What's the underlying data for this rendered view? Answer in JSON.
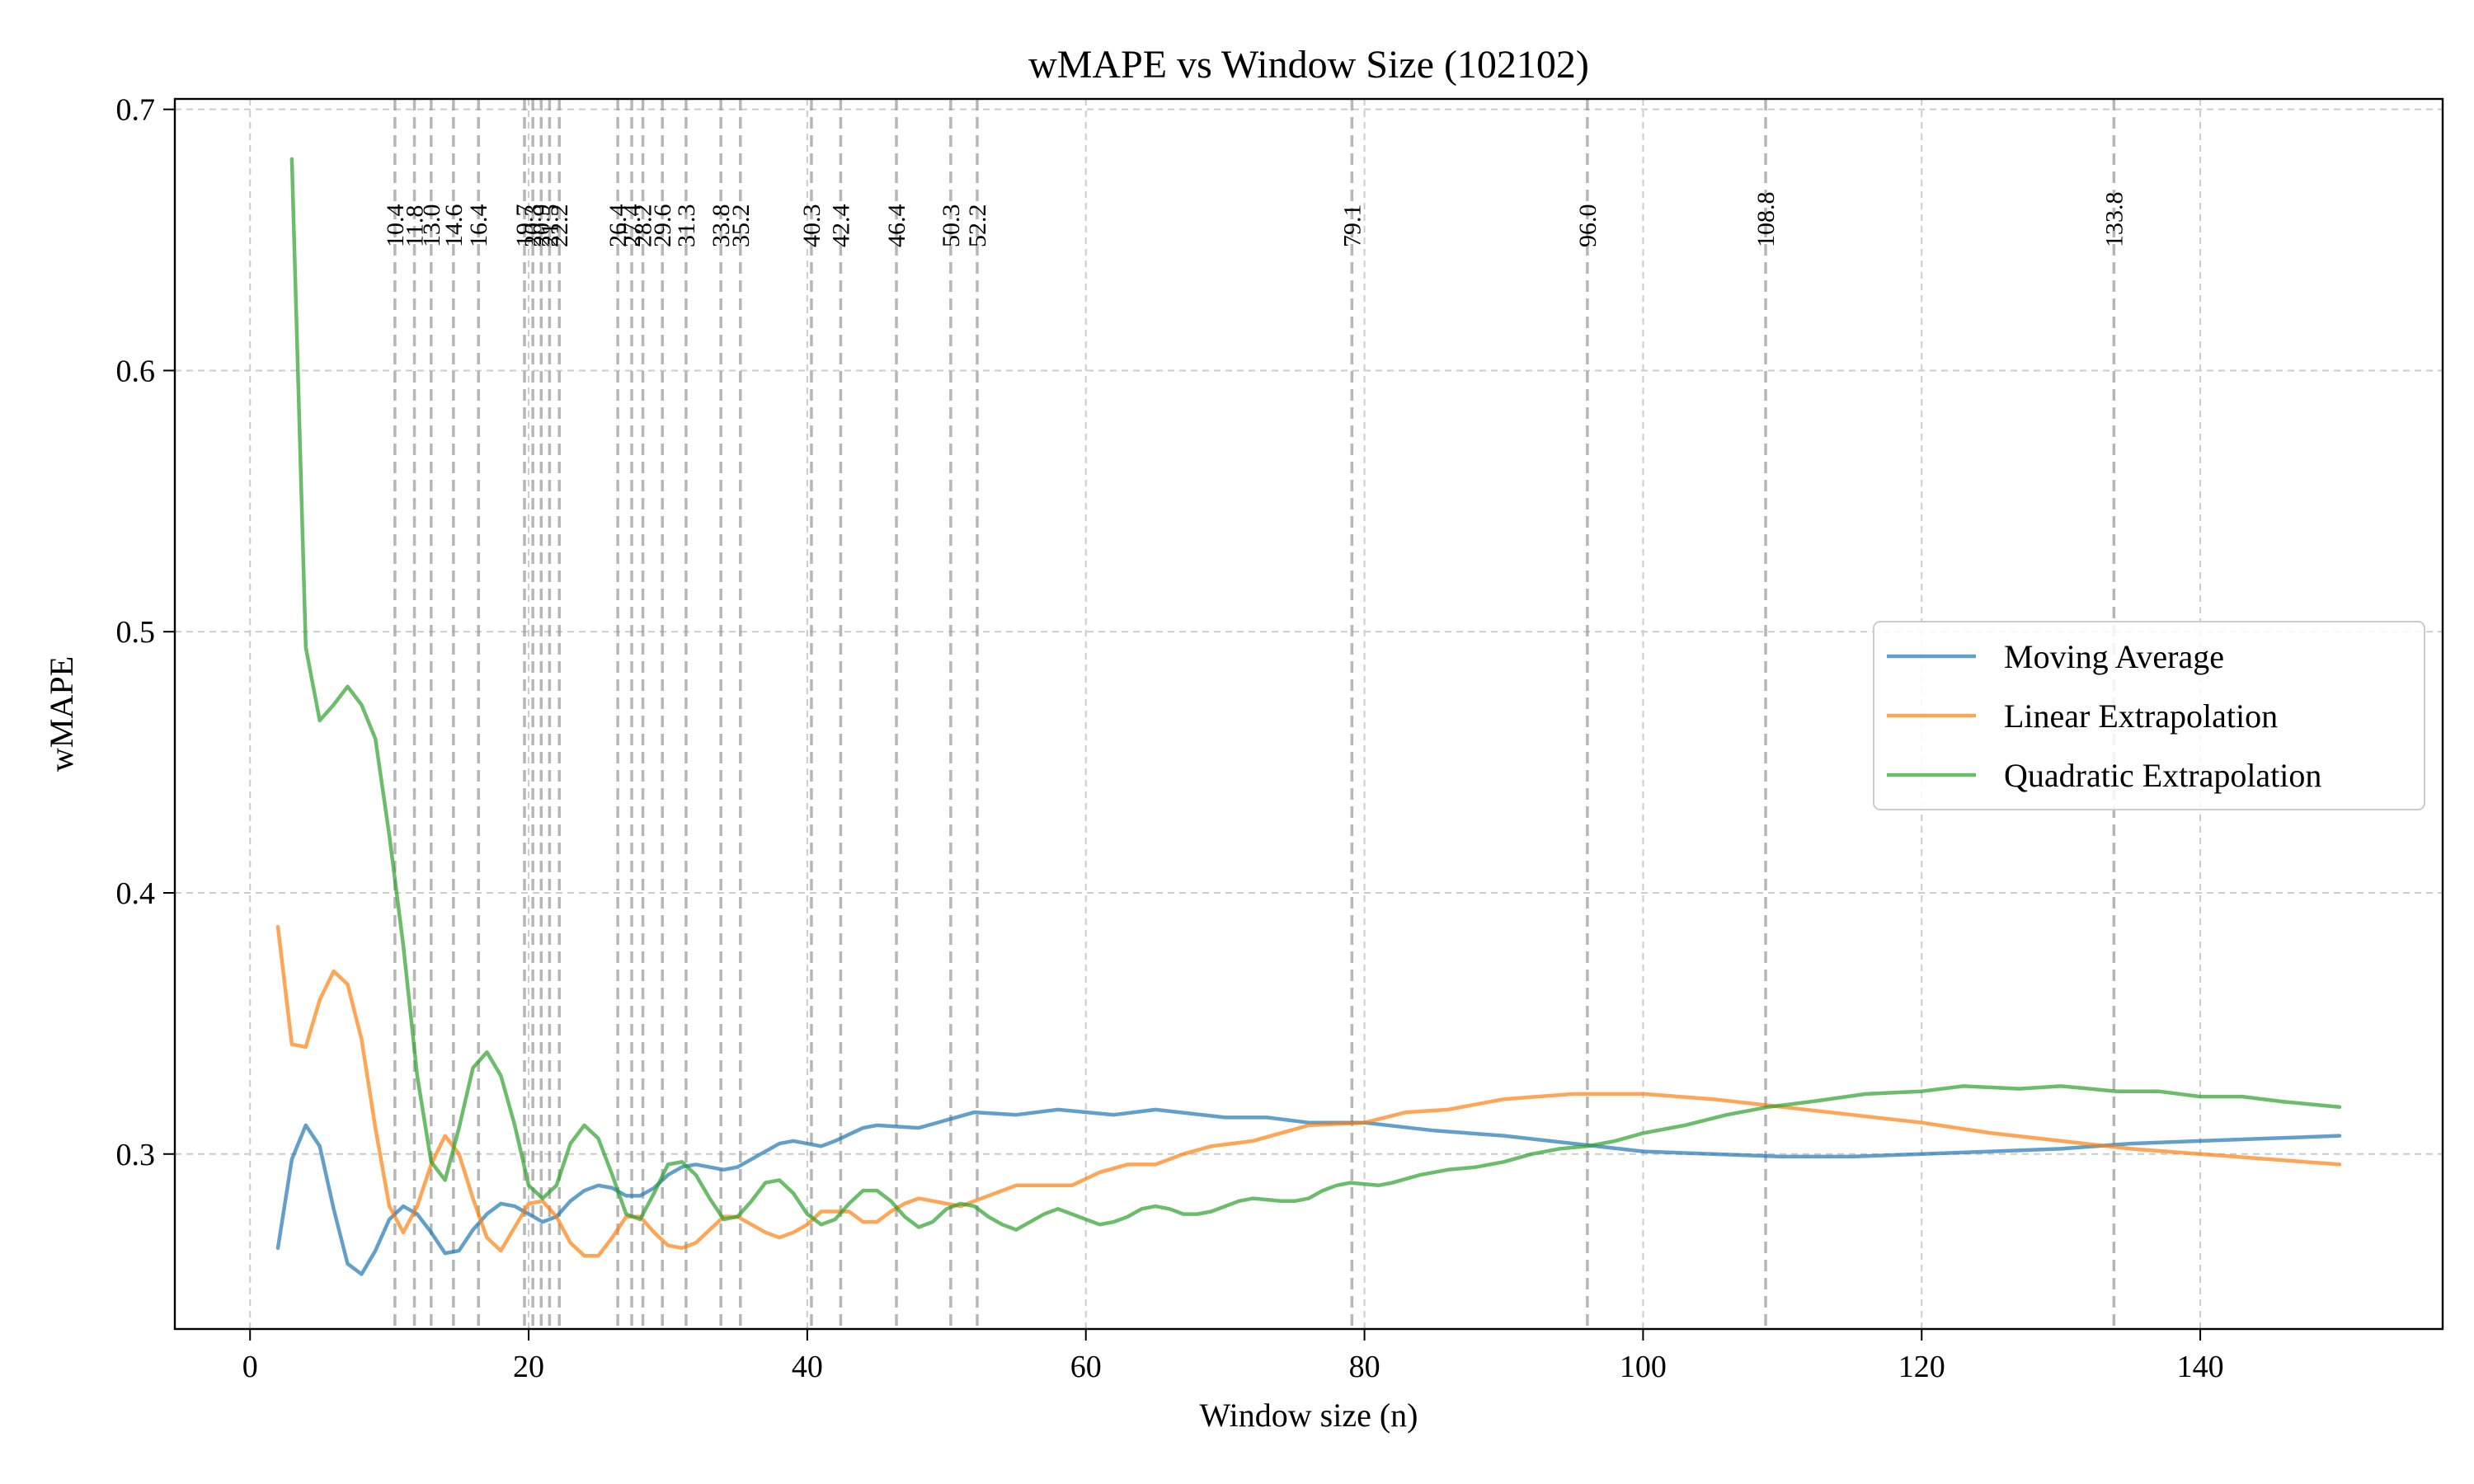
{
  "chart_data": {
    "type": "line",
    "title": "wMAPE vs Window Size (102102)",
    "xlabel": "Window size (n)",
    "ylabel": "wMAPE",
    "xlim": [
      -5.4,
      157.4
    ],
    "ylim": [
      0.233,
      0.704
    ],
    "x_ticks": [
      0,
      20,
      40,
      60,
      80,
      100,
      120,
      140
    ],
    "y_ticks": [
      0.3,
      0.4,
      0.5,
      0.6,
      0.7
    ],
    "grid": true,
    "legend_position": "center-right",
    "markers": [
      "10.4",
      "11.8",
      "13.0",
      "14.6",
      "16.4",
      "19.7",
      "20.3",
      "20.9",
      "21.5",
      "22.2",
      "26.4",
      "27.4",
      "28.2",
      "29.6",
      "31.3",
      "33.8",
      "35.2",
      "40.3",
      "42.4",
      "46.4",
      "50.3",
      "52.2",
      "79.1",
      "96.0",
      "108.8",
      "133.8"
    ],
    "marker_positions": [
      10.4,
      11.8,
      13.0,
      14.6,
      16.4,
      19.7,
      20.3,
      20.9,
      21.5,
      22.2,
      26.4,
      27.4,
      28.2,
      29.6,
      31.3,
      33.8,
      35.2,
      40.3,
      42.4,
      46.4,
      50.3,
      52.2,
      79.1,
      96.0,
      108.8,
      133.8
    ],
    "series": [
      {
        "name": "Moving Average",
        "color": "#1f77b4",
        "points": [
          [
            2,
            0.264
          ],
          [
            3,
            0.298
          ],
          [
            4,
            0.311
          ],
          [
            5,
            0.303
          ],
          [
            6,
            0.279
          ],
          [
            7,
            0.258
          ],
          [
            8,
            0.254
          ],
          [
            9,
            0.263
          ],
          [
            10,
            0.275
          ],
          [
            11,
            0.28
          ],
          [
            12,
            0.277
          ],
          [
            13,
            0.27
          ],
          [
            14,
            0.262
          ],
          [
            15,
            0.263
          ],
          [
            16,
            0.271
          ],
          [
            17,
            0.277
          ],
          [
            18,
            0.281
          ],
          [
            19,
            0.28
          ],
          [
            20,
            0.277
          ],
          [
            21,
            0.274
          ],
          [
            22,
            0.276
          ],
          [
            23,
            0.282
          ],
          [
            24,
            0.286
          ],
          [
            25,
            0.288
          ],
          [
            26,
            0.287
          ],
          [
            27,
            0.284
          ],
          [
            28,
            0.284
          ],
          [
            29,
            0.287
          ],
          [
            30,
            0.292
          ],
          [
            31,
            0.295
          ],
          [
            32,
            0.296
          ],
          [
            34,
            0.294
          ],
          [
            35,
            0.295
          ],
          [
            36,
            0.298
          ],
          [
            37,
            0.301
          ],
          [
            38,
            0.304
          ],
          [
            39,
            0.305
          ],
          [
            41,
            0.303
          ],
          [
            42,
            0.305
          ],
          [
            44,
            0.31
          ],
          [
            45,
            0.311
          ],
          [
            48,
            0.31
          ],
          [
            50,
            0.313
          ],
          [
            52,
            0.316
          ],
          [
            55,
            0.315
          ],
          [
            58,
            0.317
          ],
          [
            62,
            0.315
          ],
          [
            65,
            0.317
          ],
          [
            70,
            0.314
          ],
          [
            73,
            0.314
          ],
          [
            76,
            0.312
          ],
          [
            80,
            0.312
          ],
          [
            85,
            0.309
          ],
          [
            90,
            0.307
          ],
          [
            95,
            0.304
          ],
          [
            100,
            0.301
          ],
          [
            105,
            0.3
          ],
          [
            110,
            0.299
          ],
          [
            115,
            0.299
          ],
          [
            120,
            0.3
          ],
          [
            125,
            0.301
          ],
          [
            130,
            0.302
          ],
          [
            135,
            0.304
          ],
          [
            140,
            0.305
          ],
          [
            145,
            0.306
          ],
          [
            150,
            0.307
          ]
        ]
      },
      {
        "name": "Linear Extrapolation",
        "color": "#ff7f0e",
        "points": [
          [
            2,
            0.387
          ],
          [
            3,
            0.342
          ],
          [
            4,
            0.341
          ],
          [
            5,
            0.359
          ],
          [
            6,
            0.37
          ],
          [
            7,
            0.365
          ],
          [
            8,
            0.344
          ],
          [
            9,
            0.31
          ],
          [
            10,
            0.28
          ],
          [
            11,
            0.27
          ],
          [
            12,
            0.28
          ],
          [
            13,
            0.296
          ],
          [
            14,
            0.307
          ],
          [
            15,
            0.3
          ],
          [
            16,
            0.283
          ],
          [
            17,
            0.268
          ],
          [
            18,
            0.263
          ],
          [
            19,
            0.272
          ],
          [
            20,
            0.281
          ],
          [
            21,
            0.282
          ],
          [
            22,
            0.276
          ],
          [
            23,
            0.266
          ],
          [
            24,
            0.261
          ],
          [
            25,
            0.261
          ],
          [
            26,
            0.268
          ],
          [
            27,
            0.276
          ],
          [
            28,
            0.276
          ],
          [
            29,
            0.27
          ],
          [
            30,
            0.265
          ],
          [
            31,
            0.264
          ],
          [
            32,
            0.266
          ],
          [
            33,
            0.271
          ],
          [
            34,
            0.276
          ],
          [
            35,
            0.276
          ],
          [
            36,
            0.273
          ],
          [
            37,
            0.27
          ],
          [
            38,
            0.268
          ],
          [
            39,
            0.27
          ],
          [
            40,
            0.273
          ],
          [
            41,
            0.278
          ],
          [
            43,
            0.278
          ],
          [
            44,
            0.274
          ],
          [
            45,
            0.274
          ],
          [
            46,
            0.278
          ],
          [
            47,
            0.281
          ],
          [
            48,
            0.283
          ],
          [
            50,
            0.281
          ],
          [
            51,
            0.28
          ],
          [
            52,
            0.282
          ],
          [
            54,
            0.286
          ],
          [
            55,
            0.288
          ],
          [
            57,
            0.288
          ],
          [
            59,
            0.288
          ],
          [
            61,
            0.293
          ],
          [
            63,
            0.296
          ],
          [
            65,
            0.296
          ],
          [
            67,
            0.3
          ],
          [
            69,
            0.303
          ],
          [
            72,
            0.305
          ],
          [
            76,
            0.311
          ],
          [
            80,
            0.312
          ],
          [
            83,
            0.316
          ],
          [
            86,
            0.317
          ],
          [
            90,
            0.321
          ],
          [
            95,
            0.323
          ],
          [
            100,
            0.323
          ],
          [
            105,
            0.321
          ],
          [
            110,
            0.318
          ],
          [
            115,
            0.315
          ],
          [
            120,
            0.312
          ],
          [
            125,
            0.308
          ],
          [
            130,
            0.305
          ],
          [
            135,
            0.302
          ],
          [
            140,
            0.3
          ],
          [
            145,
            0.298
          ],
          [
            150,
            0.296
          ]
        ]
      },
      {
        "name": "Quadratic Extrapolation",
        "color": "#2ca02c",
        "points": [
          [
            3,
            0.681
          ],
          [
            4,
            0.494
          ],
          [
            5,
            0.466
          ],
          [
            6,
            0.472
          ],
          [
            7,
            0.479
          ],
          [
            8,
            0.472
          ],
          [
            9,
            0.459
          ],
          [
            10,
            0.422
          ],
          [
            11,
            0.38
          ],
          [
            12,
            0.33
          ],
          [
            13,
            0.297
          ],
          [
            14,
            0.29
          ],
          [
            15,
            0.31
          ],
          [
            16,
            0.333
          ],
          [
            17,
            0.339
          ],
          [
            18,
            0.33
          ],
          [
            19,
            0.311
          ],
          [
            20,
            0.288
          ],
          [
            21,
            0.283
          ],
          [
            22,
            0.288
          ],
          [
            23,
            0.304
          ],
          [
            24,
            0.311
          ],
          [
            25,
            0.306
          ],
          [
            26,
            0.292
          ],
          [
            27,
            0.277
          ],
          [
            28,
            0.275
          ],
          [
            29,
            0.285
          ],
          [
            30,
            0.296
          ],
          [
            31,
            0.297
          ],
          [
            32,
            0.292
          ],
          [
            33,
            0.283
          ],
          [
            34,
            0.275
          ],
          [
            35,
            0.276
          ],
          [
            36,
            0.282
          ],
          [
            37,
            0.289
          ],
          [
            38,
            0.29
          ],
          [
            39,
            0.285
          ],
          [
            40,
            0.277
          ],
          [
            41,
            0.273
          ],
          [
            42,
            0.275
          ],
          [
            43,
            0.281
          ],
          [
            44,
            0.286
          ],
          [
            45,
            0.286
          ],
          [
            46,
            0.282
          ],
          [
            47,
            0.276
          ],
          [
            48,
            0.272
          ],
          [
            49,
            0.274
          ],
          [
            50,
            0.279
          ],
          [
            51,
            0.281
          ],
          [
            52,
            0.28
          ],
          [
            53,
            0.276
          ],
          [
            54,
            0.273
          ],
          [
            55,
            0.271
          ],
          [
            56,
            0.274
          ],
          [
            57,
            0.277
          ],
          [
            58,
            0.279
          ],
          [
            59,
            0.277
          ],
          [
            60,
            0.275
          ],
          [
            61,
            0.273
          ],
          [
            62,
            0.274
          ],
          [
            63,
            0.276
          ],
          [
            64,
            0.279
          ],
          [
            65,
            0.28
          ],
          [
            66,
            0.279
          ],
          [
            67,
            0.277
          ],
          [
            68,
            0.277
          ],
          [
            69,
            0.278
          ],
          [
            70,
            0.28
          ],
          [
            71,
            0.282
          ],
          [
            72,
            0.283
          ],
          [
            74,
            0.282
          ],
          [
            75,
            0.282
          ],
          [
            76,
            0.283
          ],
          [
            77,
            0.286
          ],
          [
            78,
            0.288
          ],
          [
            79,
            0.289
          ],
          [
            81,
            0.288
          ],
          [
            82,
            0.289
          ],
          [
            84,
            0.292
          ],
          [
            86,
            0.294
          ],
          [
            88,
            0.295
          ],
          [
            90,
            0.297
          ],
          [
            92,
            0.3
          ],
          [
            94,
            0.302
          ],
          [
            96,
            0.303
          ],
          [
            98,
            0.305
          ],
          [
            100,
            0.308
          ],
          [
            103,
            0.311
          ],
          [
            106,
            0.315
          ],
          [
            109,
            0.318
          ],
          [
            112,
            0.32
          ],
          [
            116,
            0.323
          ],
          [
            120,
            0.324
          ],
          [
            123,
            0.326
          ],
          [
            127,
            0.325
          ],
          [
            130,
            0.326
          ],
          [
            134,
            0.324
          ],
          [
            137,
            0.324
          ],
          [
            140,
            0.322
          ],
          [
            143,
            0.322
          ],
          [
            146,
            0.32
          ],
          [
            150,
            0.318
          ]
        ]
      }
    ]
  }
}
